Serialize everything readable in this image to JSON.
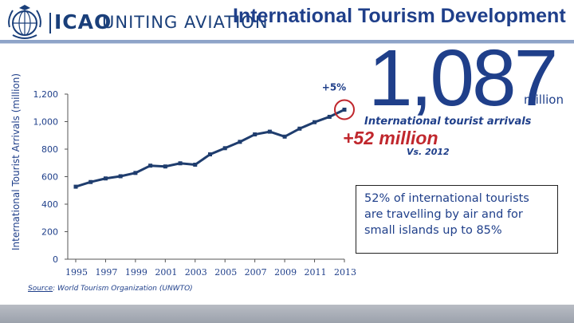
{
  "header": {
    "logo_icao": "ICAO",
    "logo_tagline": "UNITING AVIATION",
    "title": "International Tourism Development"
  },
  "highlight": {
    "big_number": "1,087",
    "unit": "million",
    "caption": "International tourist arrivals",
    "change": "+52 million",
    "comparison": "Vs. 2012",
    "growth_label": "+5%"
  },
  "info_box": {
    "text": "52% of international tourists are travelling by air and for small islands up to 85%"
  },
  "source": {
    "key": "Source",
    "value": ": World Tourism Organization (UNWTO)"
  },
  "colors": {
    "primary_blue": "#1f3f8a",
    "accent_red": "#c0272d",
    "line_color": "#1f3d6e"
  },
  "chart_data": {
    "type": "line",
    "title": "",
    "xlabel": "",
    "ylabel": "International Tourist Arrivals (million)",
    "ylim": [
      0,
      1200
    ],
    "yticks": [
      0,
      200,
      400,
      600,
      800,
      1000,
      1200
    ],
    "ytick_labels": [
      "0",
      "200",
      "400",
      "600",
      "800",
      "1,000",
      "1,200"
    ],
    "xticks": [
      1995,
      1997,
      1999,
      2001,
      2003,
      2005,
      2007,
      2009,
      2011,
      2013
    ],
    "xtick_labels": [
      "1995",
      "1997",
      "1999",
      "2001",
      "2003",
      "2005",
      "2007",
      "2009",
      "2011",
      "2013"
    ],
    "xlim": [
      1995,
      2013
    ],
    "grid": false,
    "series": [
      {
        "x": [
          1995,
          1996,
          1997,
          1998,
          1999,
          2000,
          2001,
          2002,
          2003,
          2004,
          2005,
          2006,
          2007,
          2008,
          2009,
          2010,
          2011,
          2012,
          2013
        ],
        "values": [
          527,
          561,
          587,
          603,
          627,
          680,
          674,
          697,
          687,
          762,
          807,
          853,
          907,
          927,
          891,
          949,
          996,
          1035,
          1087
        ]
      }
    ],
    "highlighted_point": {
      "x": 2013,
      "y": 1087
    }
  }
}
